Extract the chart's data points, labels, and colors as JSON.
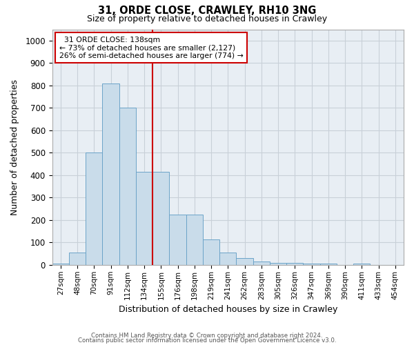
{
  "title1": "31, ORDE CLOSE, CRAWLEY, RH10 3NG",
  "title2": "Size of property relative to detached houses in Crawley",
  "xlabel": "Distribution of detached houses by size in Crawley",
  "ylabel": "Number of detached properties",
  "categories": [
    "27sqm",
    "48sqm",
    "70sqm",
    "91sqm",
    "112sqm",
    "134sqm",
    "155sqm",
    "176sqm",
    "198sqm",
    "219sqm",
    "241sqm",
    "262sqm",
    "283sqm",
    "305sqm",
    "326sqm",
    "347sqm",
    "369sqm",
    "390sqm",
    "411sqm",
    "433sqm",
    "454sqm"
  ],
  "values": [
    5,
    55,
    500,
    810,
    700,
    415,
    415,
    225,
    225,
    115,
    55,
    30,
    15,
    10,
    10,
    7,
    7,
    0,
    5,
    0,
    0
  ],
  "bar_color": "#c9dcea",
  "bar_edge_color": "#6ba3c8",
  "vline_color": "#cc0000",
  "annotation_line1": "  31 ORDE CLOSE: 138sqm",
  "annotation_line2": "← 73% of detached houses are smaller (2,127)",
  "annotation_line3": "26% of semi-detached houses are larger (774) →",
  "annotation_box_color": "white",
  "annotation_box_edge": "#cc0000",
  "ylim": [
    0,
    1050
  ],
  "yticks": [
    0,
    100,
    200,
    300,
    400,
    500,
    600,
    700,
    800,
    900,
    1000
  ],
  "footnote1": "Contains HM Land Registry data © Crown copyright and database right 2024.",
  "footnote2": "Contains public sector information licensed under the Open Government Licence v3.0.",
  "grid_color": "#c8d0d8",
  "bg_color": "#e8eef4"
}
